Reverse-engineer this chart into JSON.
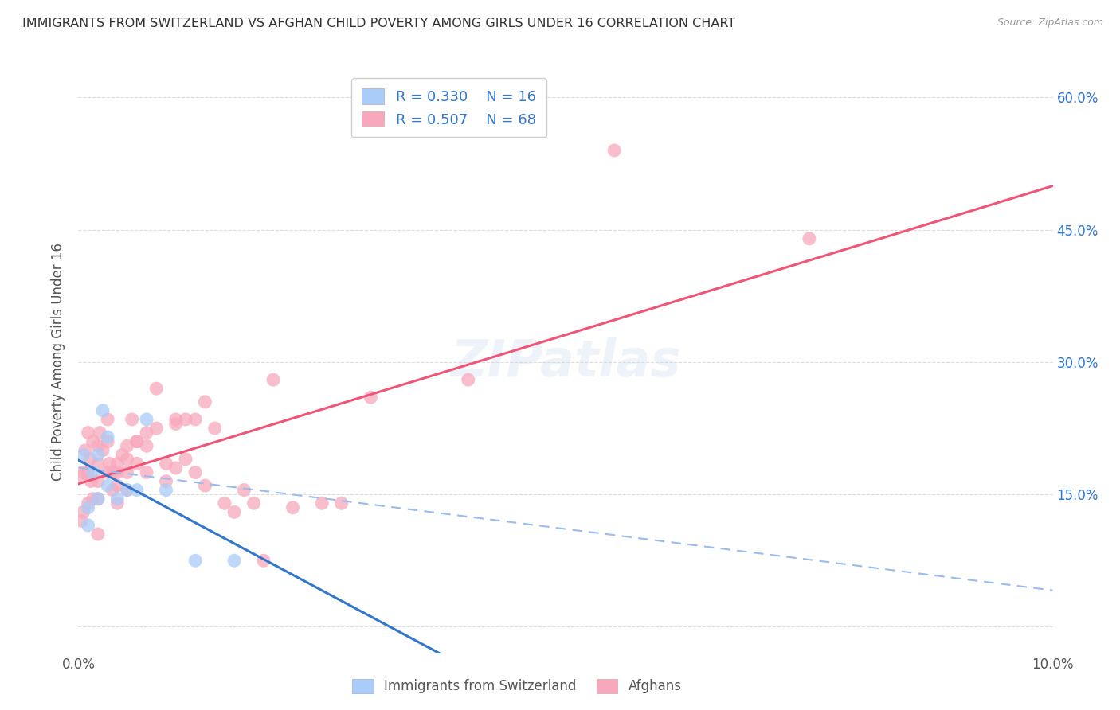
{
  "title": "IMMIGRANTS FROM SWITZERLAND VS AFGHAN CHILD POVERTY AMONG GIRLS UNDER 16 CORRELATION CHART",
  "source": "Source: ZipAtlas.com",
  "ylabel": "Child Poverty Among Girls Under 16",
  "xmin": 0.0,
  "xmax": 0.1,
  "ymin": -0.03,
  "ymax": 0.63,
  "r_swiss": 0.33,
  "n_swiss": 16,
  "r_afghan": 0.507,
  "n_afghan": 68,
  "color_swiss": "#aaccf8",
  "color_afghan": "#f8a8bc",
  "color_swiss_line": "#3377cc",
  "color_afghan_line": "#ee5577",
  "color_dashed": "#99bbee",
  "legend_label_swiss": "Immigrants from Switzerland",
  "legend_label_afghan": "Afghans",
  "swiss_x": [
    0.0005,
    0.001,
    0.001,
    0.0015,
    0.002,
    0.002,
    0.0025,
    0.003,
    0.003,
    0.004,
    0.005,
    0.006,
    0.007,
    0.009,
    0.012,
    0.016
  ],
  "swiss_y": [
    0.195,
    0.135,
    0.115,
    0.175,
    0.145,
    0.195,
    0.245,
    0.215,
    0.16,
    0.145,
    0.155,
    0.155,
    0.235,
    0.155,
    0.075,
    0.075
  ],
  "afghan_x": [
    0.0002,
    0.0003,
    0.0005,
    0.0005,
    0.0007,
    0.001,
    0.001,
    0.001,
    0.0012,
    0.0013,
    0.0015,
    0.0015,
    0.002,
    0.002,
    0.002,
    0.002,
    0.002,
    0.0022,
    0.0025,
    0.003,
    0.003,
    0.003,
    0.0032,
    0.0035,
    0.0035,
    0.004,
    0.004,
    0.004,
    0.004,
    0.0045,
    0.005,
    0.005,
    0.005,
    0.005,
    0.0055,
    0.006,
    0.006,
    0.006,
    0.007,
    0.007,
    0.007,
    0.008,
    0.008,
    0.009,
    0.009,
    0.01,
    0.01,
    0.01,
    0.011,
    0.011,
    0.012,
    0.012,
    0.013,
    0.013,
    0.014,
    0.015,
    0.016,
    0.017,
    0.018,
    0.019,
    0.02,
    0.022,
    0.025,
    0.027,
    0.03,
    0.04,
    0.055,
    0.075
  ],
  "afghan_y": [
    0.17,
    0.12,
    0.175,
    0.13,
    0.2,
    0.22,
    0.175,
    0.14,
    0.19,
    0.165,
    0.21,
    0.145,
    0.205,
    0.185,
    0.165,
    0.145,
    0.105,
    0.22,
    0.2,
    0.235,
    0.21,
    0.175,
    0.185,
    0.175,
    0.155,
    0.185,
    0.175,
    0.16,
    0.14,
    0.195,
    0.205,
    0.19,
    0.175,
    0.155,
    0.235,
    0.21,
    0.21,
    0.185,
    0.22,
    0.205,
    0.175,
    0.225,
    0.27,
    0.185,
    0.165,
    0.23,
    0.235,
    0.18,
    0.235,
    0.19,
    0.235,
    0.175,
    0.255,
    0.16,
    0.225,
    0.14,
    0.13,
    0.155,
    0.14,
    0.075,
    0.28,
    0.135,
    0.14,
    0.14,
    0.26,
    0.28,
    0.54,
    0.44
  ],
  "watermark": "ZIPatlas",
  "background_color": "#ffffff",
  "grid_color": "#dddddd"
}
